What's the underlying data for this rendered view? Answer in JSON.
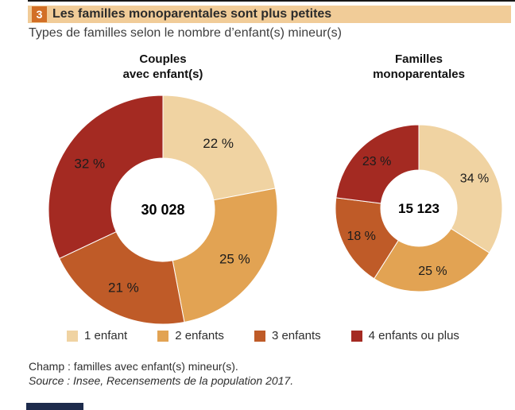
{
  "header": {
    "figure_number": "3",
    "title": "Les familles monoparentales sont plus petites",
    "subtitle": "Types de familles selon le nombre d’enfant(s) mineur(s)"
  },
  "chart_data": {
    "type": "pie",
    "variant": "donut",
    "legend_position": "bottom",
    "categories": [
      "1 enfant",
      "2 enfants",
      "3 enfants",
      "4 enfants ou plus"
    ],
    "colors": [
      "#f0d3a2",
      "#e2a353",
      "#bf5b28",
      "#a42a22"
    ],
    "charts": [
      {
        "title": "Couples avec enfant(s)",
        "title_lines": [
          "Couples",
          "avec enfant(s)"
        ],
        "center_value": "30 028",
        "values": [
          22,
          25,
          21,
          32
        ],
        "labels": [
          "22 %",
          "25 %",
          "21 %",
          "32 %"
        ]
      },
      {
        "title": "Familles monoparentales",
        "title_lines": [
          "Familles",
          "monoparentales"
        ],
        "center_value": "15 123",
        "values": [
          34,
          25,
          18,
          23
        ],
        "labels": [
          "34 %",
          "25 %",
          "18 %",
          "23 %"
        ]
      }
    ]
  },
  "footer": {
    "champ": "Champ : familles avec enfant(s) mineur(s).",
    "source": "Source : Insee, Recensements de la population 2017."
  }
}
